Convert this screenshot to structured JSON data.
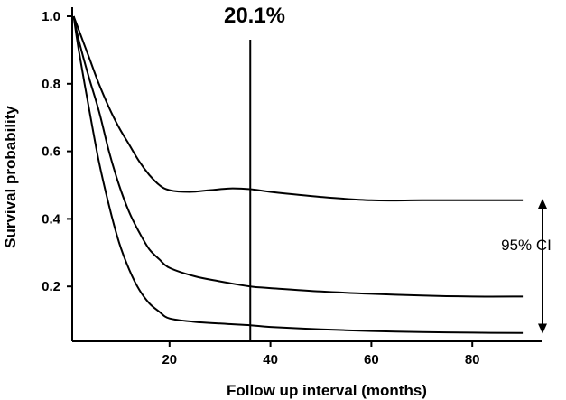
{
  "chart_data": {
    "type": "line",
    "xlabel": "Follow up interval (months)",
    "ylabel": "Survival probability",
    "xlim": [
      0,
      100
    ],
    "ylim": [
      0,
      1.05
    ],
    "x_ticks": [
      20,
      40,
      60,
      80
    ],
    "y_ticks": [
      0.2,
      0.4,
      0.6,
      0.8,
      1.0
    ],
    "x_tick_labels": [
      "20",
      "40",
      "60",
      "80"
    ],
    "y_tick_labels": [
      "0.2",
      "0.4",
      "0.6",
      "0.8",
      "1.0"
    ],
    "grid": false,
    "series": [
      {
        "role": "upper-ci",
        "points": [
          [
            1,
            1.0
          ],
          [
            2,
            0.96
          ],
          [
            4,
            0.88
          ],
          [
            6,
            0.8
          ],
          [
            8,
            0.73
          ],
          [
            10,
            0.67
          ],
          [
            12,
            0.62
          ],
          [
            14,
            0.57
          ],
          [
            16,
            0.53
          ],
          [
            18,
            0.5
          ],
          [
            20,
            0.485
          ],
          [
            24,
            0.48
          ],
          [
            28,
            0.485
          ],
          [
            32,
            0.49
          ],
          [
            36,
            0.488
          ],
          [
            40,
            0.48
          ],
          [
            50,
            0.465
          ],
          [
            60,
            0.455
          ],
          [
            70,
            0.455
          ],
          [
            80,
            0.455
          ],
          [
            90,
            0.455
          ]
        ]
      },
      {
        "role": "estimate",
        "points": [
          [
            1,
            1.0
          ],
          [
            2,
            0.93
          ],
          [
            4,
            0.82
          ],
          [
            6,
            0.72
          ],
          [
            8,
            0.6
          ],
          [
            10,
            0.5
          ],
          [
            12,
            0.42
          ],
          [
            14,
            0.36
          ],
          [
            16,
            0.31
          ],
          [
            18,
            0.28
          ],
          [
            20,
            0.255
          ],
          [
            25,
            0.23
          ],
          [
            30,
            0.215
          ],
          [
            36,
            0.2
          ],
          [
            40,
            0.195
          ],
          [
            50,
            0.185
          ],
          [
            60,
            0.178
          ],
          [
            70,
            0.173
          ],
          [
            80,
            0.17
          ],
          [
            90,
            0.17
          ]
        ]
      },
      {
        "role": "lower-ci",
        "points": [
          [
            1,
            1.0
          ],
          [
            2,
            0.9
          ],
          [
            4,
            0.73
          ],
          [
            6,
            0.57
          ],
          [
            8,
            0.44
          ],
          [
            10,
            0.33
          ],
          [
            12,
            0.25
          ],
          [
            14,
            0.19
          ],
          [
            16,
            0.15
          ],
          [
            18,
            0.125
          ],
          [
            20,
            0.105
          ],
          [
            25,
            0.095
          ],
          [
            30,
            0.09
          ],
          [
            36,
            0.085
          ],
          [
            40,
            0.08
          ],
          [
            50,
            0.073
          ],
          [
            60,
            0.068
          ],
          [
            70,
            0.065
          ],
          [
            80,
            0.063
          ],
          [
            90,
            0.062
          ]
        ]
      }
    ],
    "annotations": {
      "vline_x": 36,
      "vline_label": "20.1%",
      "ci_label": "95% CI",
      "ci_arrow_range": [
        0.06,
        0.46
      ]
    }
  }
}
